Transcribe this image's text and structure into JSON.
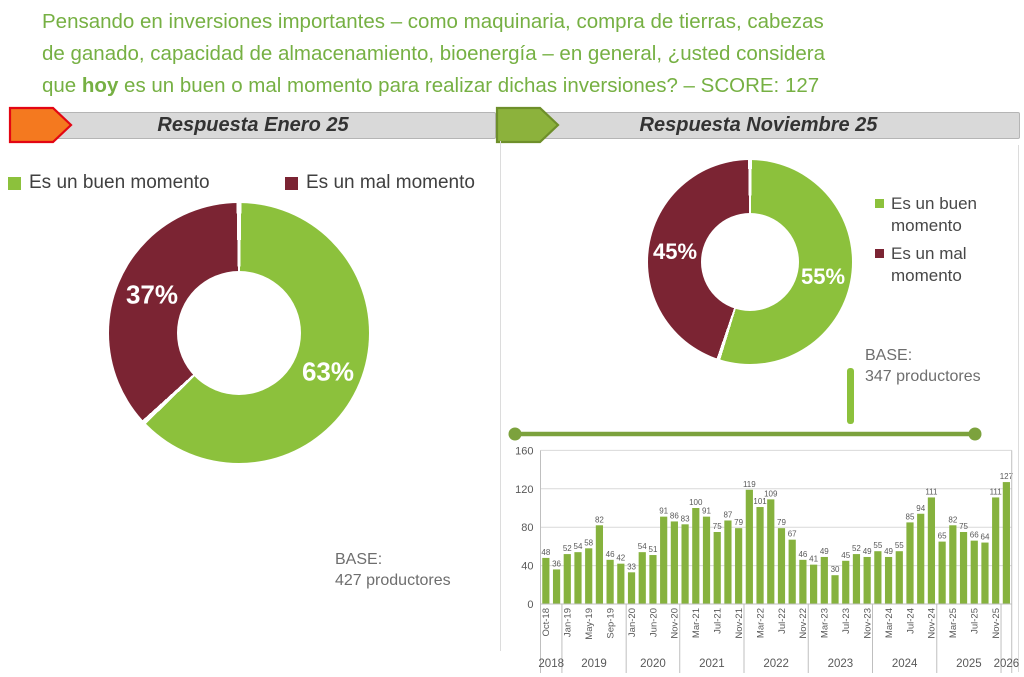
{
  "title": {
    "line1": "Pensando en inversiones importantes – como maquinaria, compra de tierras, cabezas",
    "line2": "de ganado, capacidad de almacenamiento, bioenergía – en general, ¿usted considera",
    "line3_pre": "que ",
    "line3_bold": "hoy",
    "line3_post": " es un buen o mal momento para realizar dichas inversiones? – SCORE: 127"
  },
  "banners": {
    "left": {
      "label": "Respuesta Enero 25",
      "arrow_fill": "#F4791F",
      "arrow_stroke": "#E30613"
    },
    "right": {
      "label": "Respuesta Noviembre 25",
      "arrow_fill": "#8CB23C",
      "arrow_stroke": "#6E8F2A"
    }
  },
  "colors": {
    "good": "#8CC13C",
    "bad": "#7B2433",
    "accent_line": "#7CA23D"
  },
  "chart_data": [
    {
      "type": "pie",
      "panel": "Respuesta Enero 25",
      "labels": [
        "Es un buen momento",
        "Es un mal momento"
      ],
      "values": [
        63,
        37
      ],
      "display": [
        "63%",
        "37%"
      ],
      "colors": [
        "#8CC13C",
        "#7B2433"
      ],
      "base_label": "BASE:",
      "base_value": "427 productores"
    },
    {
      "type": "pie",
      "panel": "Respuesta Noviembre 25",
      "labels": [
        "Es un buen momento",
        "Es un mal momento"
      ],
      "values": [
        55,
        45
      ],
      "display": [
        "55%",
        "45%"
      ],
      "colors": [
        "#8CC13C",
        "#7B2433"
      ],
      "base_label": "BASE:",
      "base_value": "347 productores"
    },
    {
      "type": "bar",
      "title": "Score historical trend",
      "bar_color": "#86B23E",
      "ylim": [
        0,
        160
      ],
      "ytick_step": 40,
      "grid": true,
      "values": [
        48,
        36,
        52,
        54,
        58,
        82,
        46,
        42,
        33,
        54,
        51,
        91,
        86,
        83,
        100,
        91,
        75,
        87,
        79,
        119,
        101,
        109,
        79,
        67,
        46,
        41,
        49,
        30,
        45,
        52,
        49,
        55,
        49,
        55,
        85,
        94,
        111,
        65,
        82,
        75,
        66,
        64,
        111,
        127
      ],
      "tick_labels": [
        "Oct-18",
        "Jan-19",
        "May-19",
        "Sep-19",
        "Jan-20",
        "Jun-20",
        "Nov-20",
        "Mar-21",
        "Jul-21",
        "Nov-21",
        "Mar-22",
        "Jul-22",
        "Nov-22",
        "Mar-23",
        "Jul-23",
        "Nov-23",
        "Mar-24",
        "Jul-24",
        "Nov-24",
        "Mar-25",
        "Jul-25",
        "Nov-25"
      ],
      "tick_every": 2,
      "year_groups": [
        {
          "label": "2018",
          "bars": 2
        },
        {
          "label": "2019",
          "bars": 6
        },
        {
          "label": "2020",
          "bars": 5
        },
        {
          "label": "2021",
          "bars": 6
        },
        {
          "label": "2022",
          "bars": 6
        },
        {
          "label": "2023",
          "bars": 6
        },
        {
          "label": "2024",
          "bars": 6
        },
        {
          "label": "2025",
          "bars": 6
        },
        {
          "label": "2026",
          "bars": 1
        }
      ]
    }
  ]
}
